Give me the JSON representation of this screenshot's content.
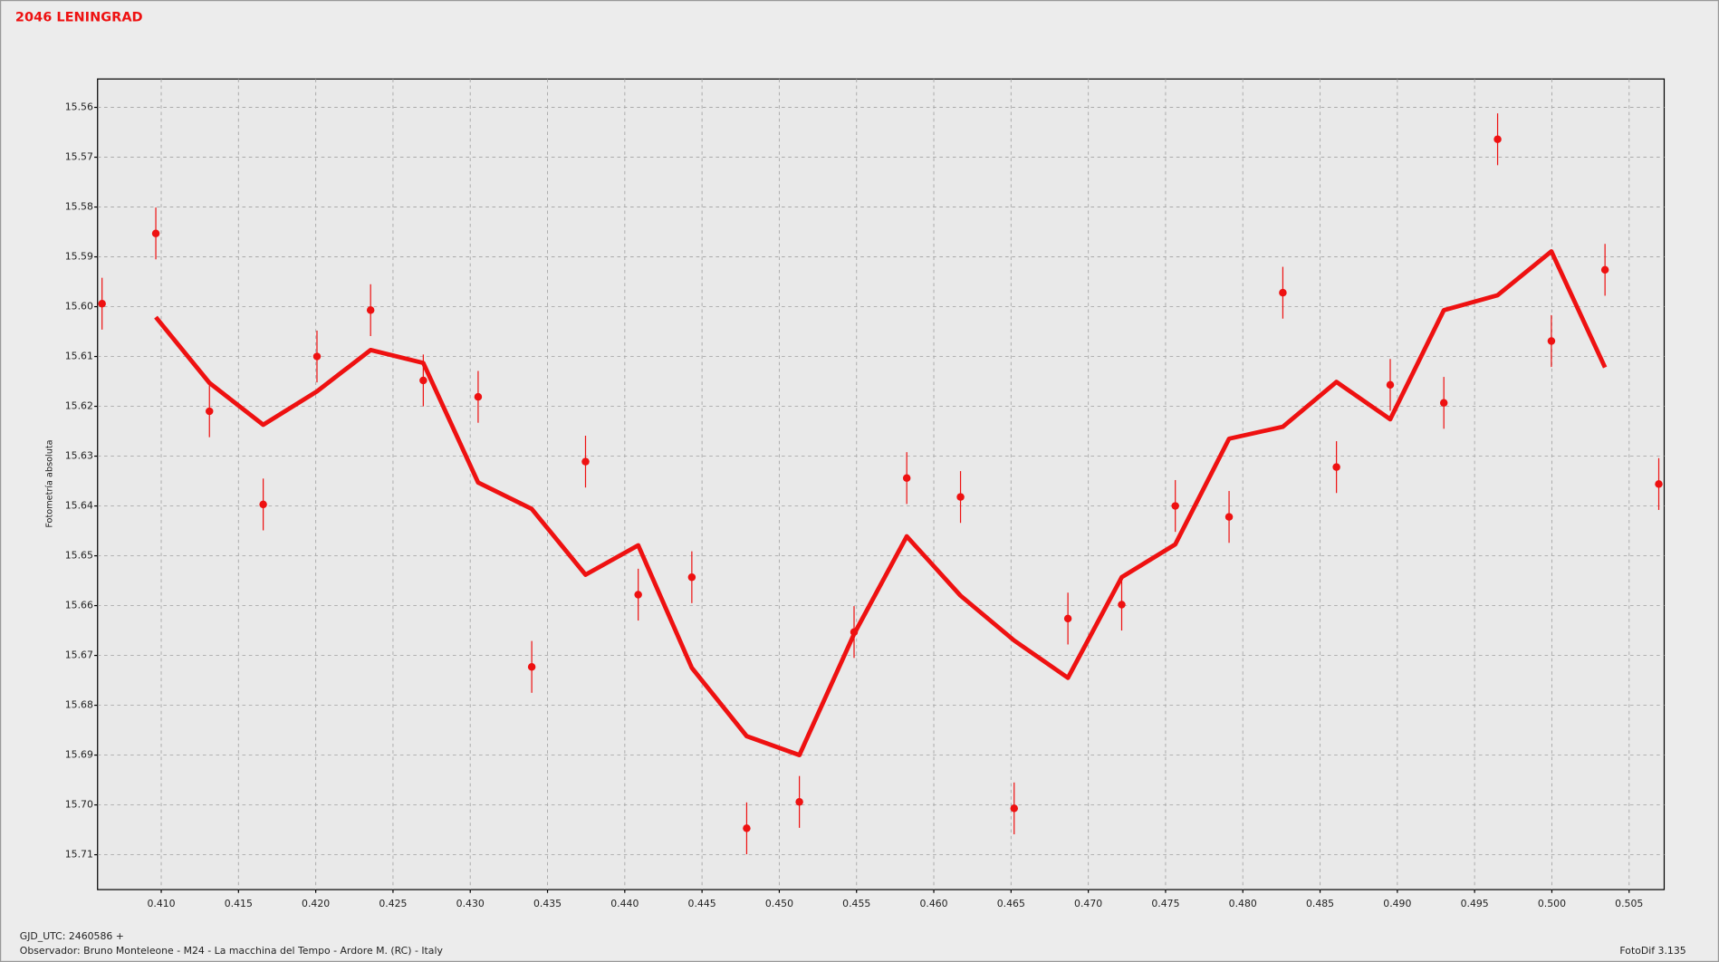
{
  "chart_data": {
    "type": "scatter",
    "title": "2046 LENINGRAD",
    "y_label": "Fotometría absoluta",
    "footer": {
      "gjd": "GJD_UTC: 2460586 +",
      "observer": "Observador: Bruno Monteleone - M24 - La macchina del Tempo - Ardore M. (RC) - Italy",
      "software": "FotoDif 3.135"
    },
    "x": [
      0.40617,
      0.40965,
      0.41312,
      0.4166,
      0.42008,
      0.42355,
      0.42696,
      0.43051,
      0.43398,
      0.43746,
      0.44087,
      0.44434,
      0.44789,
      0.4513,
      0.45484,
      0.45825,
      0.46173,
      0.4652,
      0.46868,
      0.47216,
      0.47563,
      0.47911,
      0.48259,
      0.48606,
      0.48954,
      0.49301,
      0.49649,
      0.49997,
      0.50344,
      0.50692
    ],
    "series": [
      {
        "kind": "points",
        "color": "#ee1111",
        "values": [
          15.5994,
          15.5853,
          15.621,
          15.6397,
          15.61,
          15.6007,
          15.6148,
          15.6181,
          15.6723,
          15.6311,
          15.6578,
          15.6543,
          15.7047,
          15.6994,
          15.6653,
          15.6344,
          15.6382,
          15.7007,
          15.6626,
          15.6598,
          15.64,
          15.6422,
          15.5972,
          15.6322,
          15.6157,
          15.6193,
          15.5664,
          15.6069,
          15.5926,
          15.6356
        ],
        "errors": [
          0.0052,
          0.0052,
          0.0052,
          0.0052,
          0.0052,
          0.0052,
          0.0052,
          0.0052,
          0.0052,
          0.0052,
          0.0052,
          0.0052,
          0.0052,
          0.0052,
          0.0052,
          0.0052,
          0.0052,
          0.0052,
          0.0052,
          0.0052,
          0.0052,
          0.0052,
          0.0052,
          0.0052,
          0.0052,
          0.0052,
          0.0052,
          0.0052,
          0.0052,
          0.0052
        ]
      },
      {
        "kind": "line",
        "color": "#ee1111",
        "values": [
          null,
          15.6021,
          15.6153,
          15.6237,
          15.617,
          15.6087,
          15.6113,
          15.6353,
          15.6406,
          15.6538,
          15.6479,
          15.6725,
          15.6862,
          15.69,
          15.6657,
          15.6461,
          15.658,
          15.667,
          15.6745,
          15.6543,
          15.6477,
          15.6265,
          15.6241,
          15.6151,
          15.6226,
          15.6007,
          15.5977,
          15.5889,
          15.6122,
          null
        ]
      }
    ],
    "xlim": [
      0.40588,
      0.50727
    ],
    "ylim": [
      15.717,
      15.5543
    ],
    "xticks": [
      {
        "value": 0.41,
        "label": "0.410"
      },
      {
        "value": 0.415,
        "label": "0.415"
      },
      {
        "value": 0.42,
        "label": "0.420"
      },
      {
        "value": 0.425,
        "label": "0.425"
      },
      {
        "value": 0.43,
        "label": "0.430"
      },
      {
        "value": 0.435,
        "label": "0.435"
      },
      {
        "value": 0.44,
        "label": "0.440"
      },
      {
        "value": 0.445,
        "label": "0.445"
      },
      {
        "value": 0.45,
        "label": "0.450"
      },
      {
        "value": 0.455,
        "label": "0.455"
      },
      {
        "value": 0.46,
        "label": "0.460"
      },
      {
        "value": 0.465,
        "label": "0.465"
      },
      {
        "value": 0.47,
        "label": "0.470"
      },
      {
        "value": 0.475,
        "label": "0.475"
      },
      {
        "value": 0.48,
        "label": "0.480"
      },
      {
        "value": 0.485,
        "label": "0.485"
      },
      {
        "value": 0.49,
        "label": "0.490"
      },
      {
        "value": 0.495,
        "label": "0.495"
      },
      {
        "value": 0.5,
        "label": "0.500"
      },
      {
        "value": 0.505,
        "label": "0.505"
      }
    ],
    "yticks": [
      15.56,
      15.57,
      15.58,
      15.59,
      {
        "value": 15.6,
        "label": "15.60"
      },
      15.61,
      15.62,
      15.63,
      15.64,
      15.65,
      15.66,
      15.67,
      15.68,
      15.69,
      {
        "value": 15.7,
        "label": "15.70"
      },
      15.71
    ],
    "grid": true
  }
}
